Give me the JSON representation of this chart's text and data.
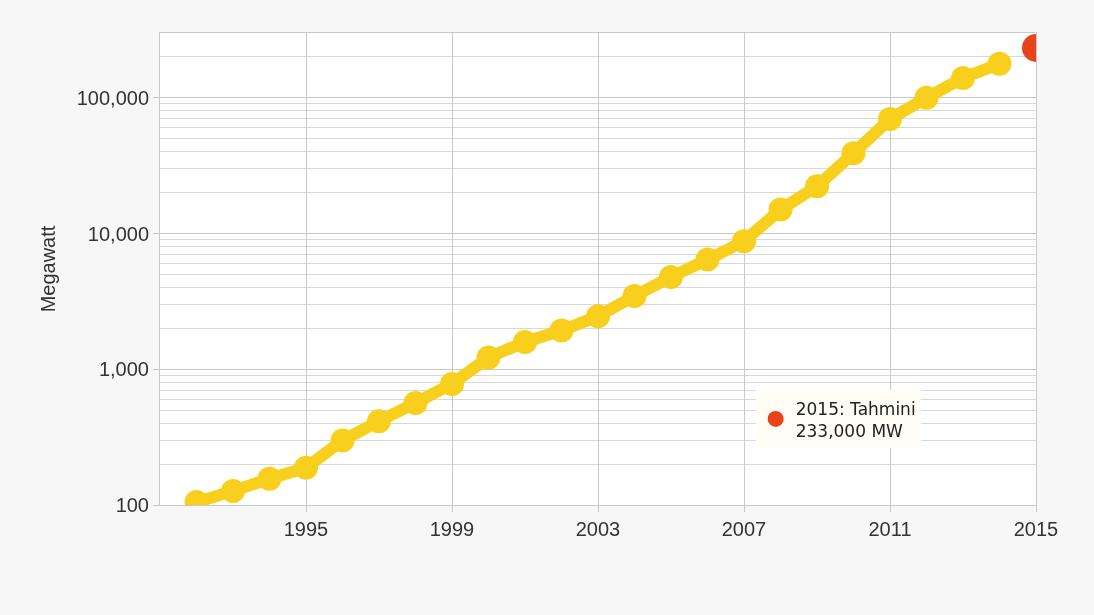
{
  "chart_data": {
    "type": "line",
    "ylabel": "Megawatt",
    "log": "y",
    "x": [
      1992,
      1993,
      1994,
      1995,
      1996,
      1997,
      1998,
      1999,
      2000,
      2001,
      2002,
      2003,
      2004,
      2005,
      2006,
      2007,
      2008,
      2009,
      2010,
      2011,
      2012,
      2013,
      2014
    ],
    "series": [
      {
        "color": "#f9cf1e",
        "values": [
          105,
          127,
          156,
          188,
          299,
          414,
          565,
          780,
          1220,
          1590,
          1930,
          2460,
          3470,
          4790,
          6430,
          8770,
          15000,
          22300,
          39000,
          69800,
          100000,
          140000,
          178000
        ]
      },
      {
        "type": "scatter",
        "name": "2015: Tahmini\n233,000 MW",
        "color": "#e8431b",
        "x": [
          2015
        ],
        "values": [
          233000
        ]
      }
    ],
    "xlim": [
      1991,
      2015
    ],
    "xticks": [
      1995,
      1999,
      2003,
      2007,
      2011,
      2015
    ],
    "ylim": [
      100,
      300000
    ],
    "yticks": [
      {
        "value": 100,
        "label": "100"
      },
      {
        "value": 1000,
        "label": "1,000"
      },
      {
        "value": 10000,
        "label": "10,000"
      },
      {
        "value": 100000,
        "label": "100,000"
      }
    ],
    "grid": true,
    "legend": "bottom right",
    "marker": "circle"
  }
}
